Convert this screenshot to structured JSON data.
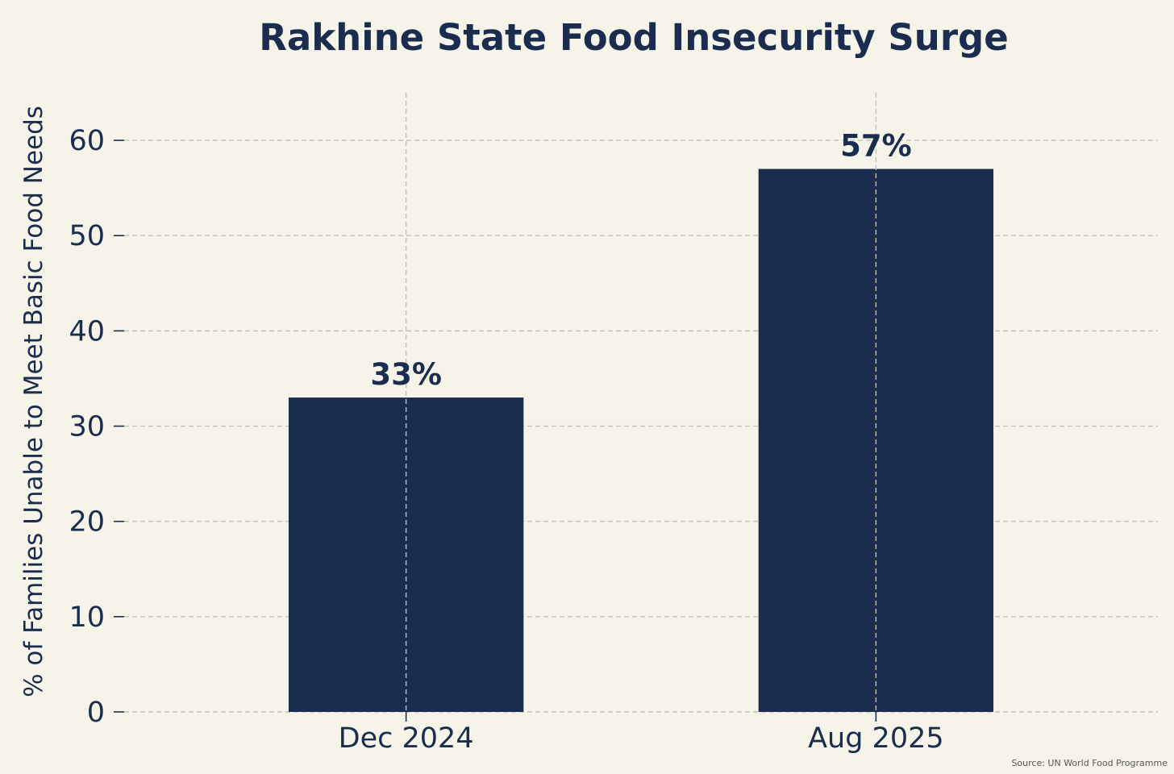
{
  "chart_data": {
    "type": "bar",
    "title": "Rakhine State Food Insecurity Surge",
    "xlabel": "",
    "ylabel": "% of Families Unable to Meet Basic Food Needs",
    "categories": [
      "Dec 2024",
      "Aug 2025"
    ],
    "values": [
      33,
      57
    ],
    "value_labels": [
      "33%",
      "57%"
    ],
    "ylim": [
      0,
      65
    ],
    "yticks": [
      0,
      10,
      20,
      30,
      40,
      50,
      60
    ],
    "grid": true,
    "source": "Source: UN World Food Programme"
  },
  "colors": {
    "background": "#f6f4e8",
    "bar": "#1b2d4f",
    "text": "#1b2d4f",
    "grid": "#c2c1b6",
    "source_text": "#555555"
  }
}
